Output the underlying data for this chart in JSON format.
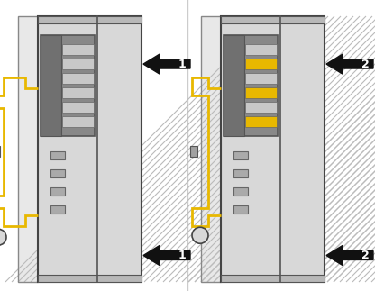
{
  "bg_color": "#ffffff",
  "panel_color": "#d8d8d8",
  "panel_color2": "#cccccc",
  "panel_dark": "#b0b0b0",
  "panel_line": "#444444",
  "conn_dark": "#909090",
  "conn_mid": "#a0a0a0",
  "conn_light": "#c8c8c8",
  "yellow": "#e8b800",
  "yellow_light": "#f0d060",
  "arrow_color": "#111111",
  "arrow_text_color": "#ffffff",
  "hatch_line_color": "#bbbbbb",
  "wall_bg": "#e8e8e8",
  "label1": "1",
  "label2": "2",
  "fig_w": 4.16,
  "fig_h": 3.23,
  "dpi": 100
}
